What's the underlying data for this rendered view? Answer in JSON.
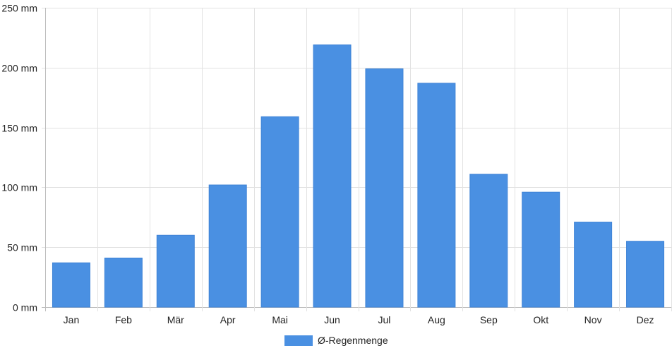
{
  "chart_data": {
    "type": "bar",
    "categories": [
      "Jan",
      "Feb",
      "Mär",
      "Apr",
      "Mai",
      "Jun",
      "Jul",
      "Aug",
      "Sep",
      "Okt",
      "Nov",
      "Dez"
    ],
    "series": [
      {
        "name": "Ø-Regenmenge",
        "values": [
          37,
          41,
          60,
          102,
          159,
          219,
          199,
          187,
          111,
          96,
          71,
          55
        ],
        "color": "#4a90e2"
      }
    ],
    "title": "",
    "xlabel": "",
    "ylabel": "",
    "ylim": [
      0,
      250
    ],
    "yticks": [
      0,
      50,
      100,
      150,
      200,
      250
    ],
    "ytick_labels": [
      "0 mm",
      "50 mm",
      "100 mm",
      "150 mm",
      "200 mm",
      "250 mm"
    ],
    "grid": true,
    "legend": "bottom-center"
  }
}
